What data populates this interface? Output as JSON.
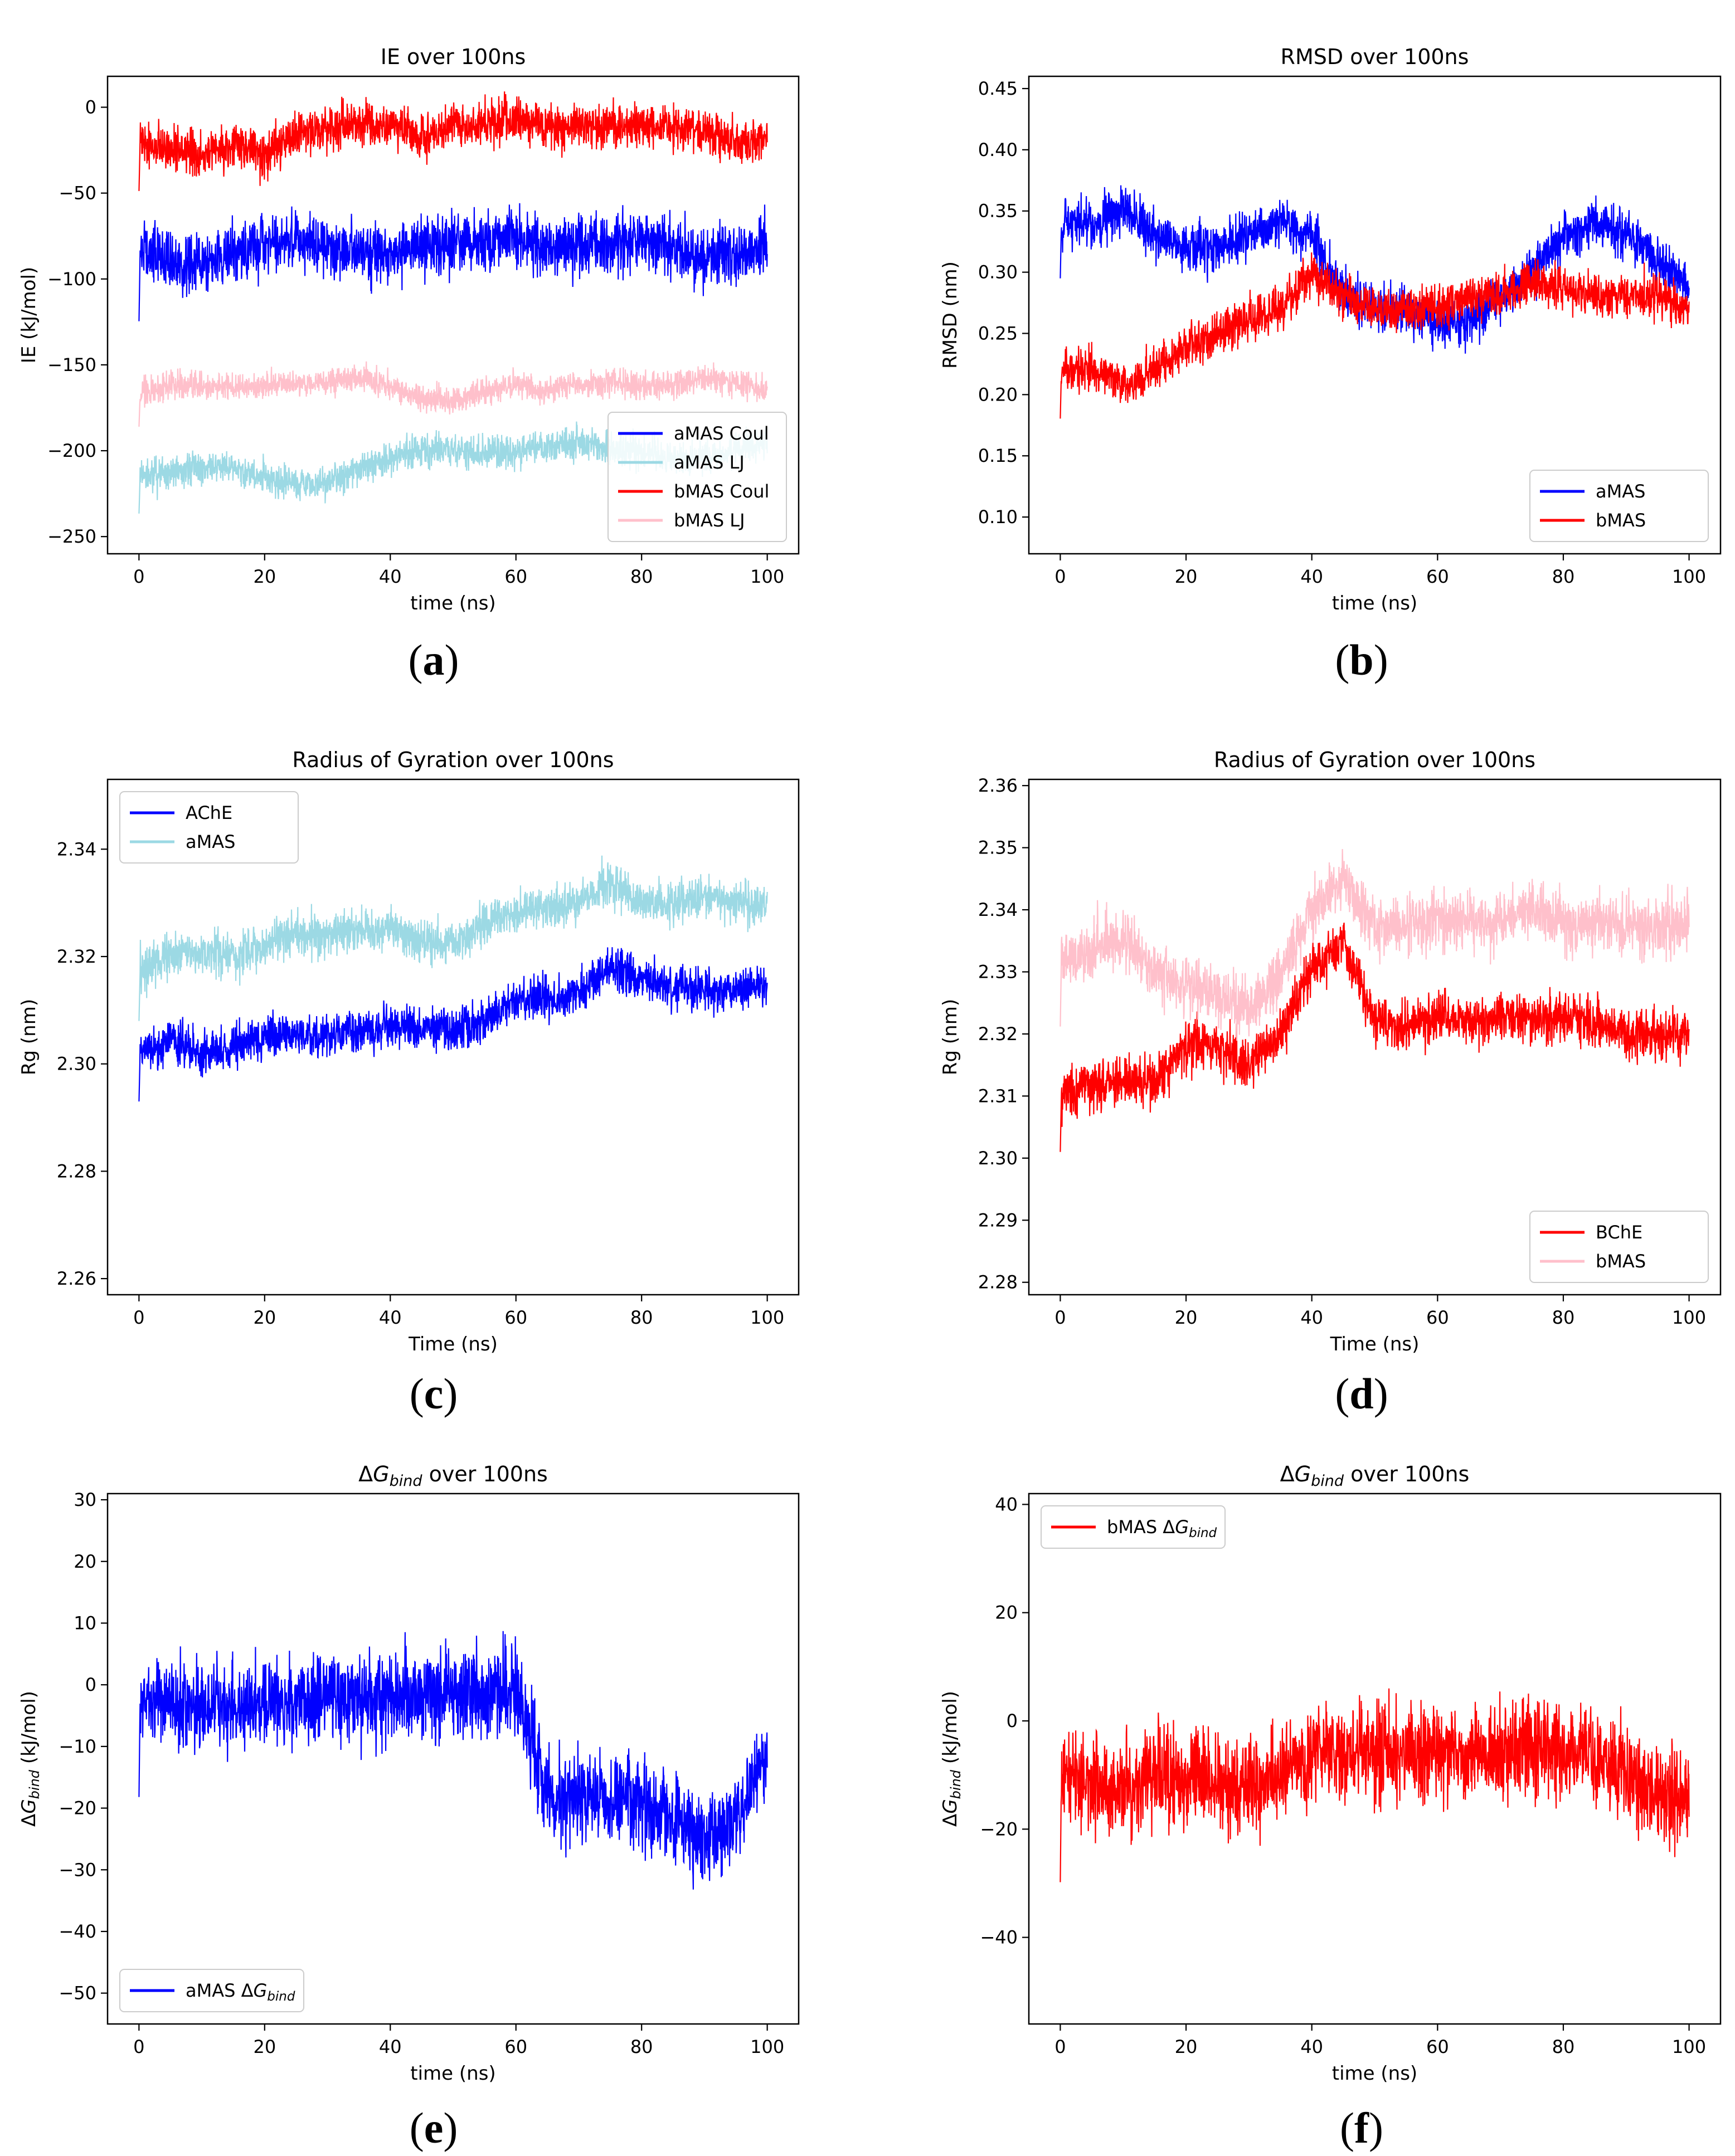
{
  "figure": {
    "panels": [
      {
        "id": "a",
        "label": "a"
      },
      {
        "id": "b",
        "label": "b"
      },
      {
        "id": "c",
        "label": "c"
      },
      {
        "id": "d",
        "label": "d"
      },
      {
        "id": "e",
        "label": "e"
      },
      {
        "id": "f",
        "label": "f"
      }
    ]
  },
  "chart_data": [
    {
      "id": "a",
      "type": "line",
      "title": "IE over 100ns",
      "xlabel": "time (ns)",
      "ylabel": "IE (kJ/mol)",
      "xlim": [
        -5,
        105
      ],
      "ylim": [
        -260,
        18
      ],
      "xticks": [
        0,
        20,
        40,
        60,
        80,
        100
      ],
      "yticks": [
        0,
        -50,
        -100,
        -150,
        -200,
        -250
      ],
      "grid": false,
      "legend": {
        "position": "lower-right"
      },
      "series": [
        {
          "name": "aMAS Coul",
          "color": "#0000ff",
          "x": [
            0,
            5,
            10,
            15,
            20,
            25,
            30,
            35,
            40,
            45,
            50,
            55,
            60,
            65,
            70,
            75,
            80,
            85,
            90,
            95,
            100
          ],
          "y": [
            -85,
            -90,
            -92,
            -85,
            -80,
            -78,
            -82,
            -85,
            -86,
            -82,
            -80,
            -78,
            -75,
            -82,
            -80,
            -80,
            -78,
            -82,
            -88,
            -85,
            -80
          ],
          "spread": 22
        },
        {
          "name": "aMAS LJ",
          "color": "#9cd9e4",
          "x": [
            0,
            5,
            10,
            15,
            20,
            25,
            30,
            35,
            40,
            45,
            50,
            55,
            60,
            65,
            70,
            75,
            80,
            85,
            90,
            95,
            100
          ],
          "y": [
            -215,
            -212,
            -210,
            -210,
            -215,
            -220,
            -218,
            -210,
            -205,
            -200,
            -200,
            -202,
            -200,
            -198,
            -195,
            -200,
            -200,
            -205,
            -205,
            -200,
            -195
          ],
          "spread": 12
        },
        {
          "name": "bMAS Coul",
          "color": "#ff0000",
          "x": [
            0,
            5,
            10,
            15,
            20,
            25,
            30,
            35,
            40,
            45,
            50,
            55,
            60,
            65,
            70,
            75,
            80,
            85,
            90,
            95,
            100
          ],
          "y": [
            -20,
            -25,
            -28,
            -22,
            -28,
            -15,
            -12,
            -10,
            -12,
            -18,
            -12,
            -10,
            -8,
            -12,
            -10,
            -10,
            -12,
            -10,
            -15,
            -20,
            -18
          ],
          "spread": 16
        },
        {
          "name": "bMAS LJ",
          "color": "#ffc0cb",
          "x": [
            0,
            5,
            10,
            15,
            20,
            25,
            30,
            35,
            40,
            45,
            50,
            55,
            60,
            65,
            70,
            75,
            80,
            85,
            90,
            95,
            100
          ],
          "y": [
            -168,
            -162,
            -162,
            -163,
            -162,
            -162,
            -160,
            -158,
            -162,
            -170,
            -172,
            -165,
            -162,
            -165,
            -162,
            -160,
            -162,
            -162,
            -158,
            -160,
            -165
          ],
          "spread": 10
        }
      ]
    },
    {
      "id": "b",
      "type": "line",
      "title": "RMSD over 100ns",
      "xlabel": "time (ns)",
      "ylabel": "RMSD (nm)",
      "xlim": [
        -5,
        105
      ],
      "ylim": [
        0.07,
        0.46
      ],
      "xticks": [
        0,
        20,
        40,
        60,
        80,
        100
      ],
      "yticks": [
        0.1,
        0.15,
        0.2,
        0.25,
        0.3,
        0.35,
        0.4,
        0.45
      ],
      "ytick_labels": [
        "0.10",
        "0.15",
        "0.20",
        "0.25",
        "0.30",
        "0.35",
        "0.40",
        "0.45"
      ],
      "grid": false,
      "legend": {
        "position": "lower-right"
      },
      "series": [
        {
          "name": "aMAS",
          "color": "#0000ff",
          "x": [
            0,
            5,
            10,
            15,
            20,
            25,
            30,
            35,
            40,
            45,
            50,
            55,
            60,
            65,
            70,
            75,
            80,
            85,
            90,
            95,
            100
          ],
          "y": [
            0.34,
            0.34,
            0.35,
            0.33,
            0.32,
            0.32,
            0.33,
            0.34,
            0.33,
            0.28,
            0.27,
            0.27,
            0.26,
            0.26,
            0.28,
            0.3,
            0.33,
            0.34,
            0.33,
            0.31,
            0.29
          ],
          "spread": 0.025
        },
        {
          "name": "bMAS",
          "color": "#ff0000",
          "x": [
            0,
            5,
            10,
            15,
            20,
            25,
            30,
            35,
            40,
            45,
            50,
            55,
            60,
            65,
            70,
            75,
            80,
            85,
            90,
            95,
            100
          ],
          "y": [
            0.22,
            0.22,
            0.21,
            0.22,
            0.24,
            0.25,
            0.26,
            0.27,
            0.3,
            0.28,
            0.27,
            0.27,
            0.27,
            0.28,
            0.28,
            0.29,
            0.29,
            0.28,
            0.28,
            0.28,
            0.27
          ],
          "spread": 0.022
        }
      ]
    },
    {
      "id": "c",
      "type": "line",
      "title": "Radius of Gyration over 100ns",
      "xlabel": "Time (ns)",
      "ylabel": "Rg (nm)",
      "xlim": [
        -5,
        105
      ],
      "ylim": [
        2.257,
        2.353
      ],
      "xticks": [
        0,
        20,
        40,
        60,
        80,
        100
      ],
      "yticks": [
        2.26,
        2.28,
        2.3,
        2.32,
        2.34
      ],
      "ytick_labels": [
        "2.26",
        "2.28",
        "2.30",
        "2.32",
        "2.34"
      ],
      "grid": false,
      "legend": {
        "position": "top-left"
      },
      "series": [
        {
          "name": "AChE",
          "color": "#0000ff",
          "x": [
            0,
            5,
            10,
            15,
            20,
            25,
            30,
            35,
            40,
            45,
            50,
            55,
            60,
            65,
            70,
            75,
            80,
            85,
            90,
            95,
            100
          ],
          "y": [
            2.302,
            2.304,
            2.302,
            2.303,
            2.305,
            2.306,
            2.305,
            2.306,
            2.307,
            2.307,
            2.306,
            2.308,
            2.312,
            2.312,
            2.313,
            2.318,
            2.316,
            2.314,
            2.314,
            2.314,
            2.315
          ],
          "spread": 0.005
        },
        {
          "name": "aMAS",
          "color": "#9cd9e4",
          "x": [
            0,
            5,
            10,
            15,
            20,
            25,
            30,
            35,
            40,
            45,
            50,
            55,
            60,
            65,
            70,
            75,
            80,
            85,
            90,
            95,
            100
          ],
          "y": [
            2.317,
            2.32,
            2.321,
            2.32,
            2.322,
            2.325,
            2.324,
            2.325,
            2.325,
            2.323,
            2.322,
            2.326,
            2.328,
            2.329,
            2.33,
            2.334,
            2.33,
            2.33,
            2.331,
            2.33,
            2.33
          ],
          "spread": 0.005
        }
      ]
    },
    {
      "id": "d",
      "type": "line",
      "title": "Radius of Gyration over 100ns",
      "xlabel": "Time (ns)",
      "ylabel": "Rg (nm)",
      "xlim": [
        -5,
        105
      ],
      "ylim": [
        2.278,
        2.361
      ],
      "xticks": [
        0,
        20,
        40,
        60,
        80,
        100
      ],
      "yticks": [
        2.28,
        2.29,
        2.3,
        2.31,
        2.32,
        2.33,
        2.34,
        2.35,
        2.36
      ],
      "ytick_labels": [
        "2.28",
        "2.29",
        "2.30",
        "2.31",
        "2.32",
        "2.33",
        "2.34",
        "2.35",
        "2.36"
      ],
      "grid": false,
      "legend": {
        "position": "lower-right"
      },
      "series": [
        {
          "name": "BChE",
          "color": "#ff0000",
          "x": [
            0,
            5,
            10,
            15,
            20,
            25,
            30,
            35,
            40,
            45,
            50,
            55,
            60,
            65,
            70,
            75,
            80,
            85,
            90,
            95,
            100
          ],
          "y": [
            2.31,
            2.312,
            2.313,
            2.312,
            2.318,
            2.318,
            2.315,
            2.32,
            2.33,
            2.335,
            2.322,
            2.321,
            2.323,
            2.322,
            2.323,
            2.322,
            2.323,
            2.322,
            2.32,
            2.32,
            2.32
          ],
          "spread": 0.005
        },
        {
          "name": "bMAS",
          "color": "#ffc0cb",
          "x": [
            0,
            5,
            10,
            15,
            20,
            25,
            30,
            35,
            40,
            45,
            50,
            55,
            60,
            65,
            70,
            75,
            80,
            85,
            90,
            95,
            100
          ],
          "y": [
            2.332,
            2.334,
            2.335,
            2.33,
            2.328,
            2.326,
            2.324,
            2.33,
            2.34,
            2.345,
            2.337,
            2.338,
            2.338,
            2.338,
            2.338,
            2.34,
            2.338,
            2.338,
            2.337,
            2.337,
            2.338
          ],
          "spread": 0.006
        }
      ]
    },
    {
      "id": "e",
      "type": "line",
      "title_text": "over 100ns",
      "xlabel": "time (ns)",
      "ylabel_text": "(kJ/mol)",
      "xlim": [
        -5,
        105
      ],
      "ylim": [
        -55,
        31
      ],
      "xticks": [
        0,
        20,
        40,
        60,
        80,
        100
      ],
      "yticks": [
        30,
        20,
        10,
        0,
        -10,
        -20,
        -30,
        -40,
        -50
      ],
      "grid": false,
      "legend": {
        "position": "lower-left"
      },
      "series": [
        {
          "name": "aMAS",
          "color": "#0000ff",
          "x": [
            0,
            5,
            10,
            15,
            20,
            25,
            30,
            35,
            40,
            45,
            50,
            55,
            60,
            65,
            70,
            75,
            80,
            85,
            90,
            95,
            100
          ],
          "y": [
            -2,
            -3,
            -4,
            -4,
            -3,
            -3,
            -2,
            -2,
            -2,
            -2,
            -1,
            -2,
            -1,
            -18,
            -18,
            -18,
            -20,
            -22,
            -25,
            -22,
            -10
          ],
          "spread": 9
        }
      ]
    },
    {
      "id": "f",
      "type": "line",
      "title_text": "over 100ns",
      "xlabel": "time (ns)",
      "ylabel_text": "(kJ/mol)",
      "xlim": [
        -5,
        105
      ],
      "ylim": [
        -56,
        42
      ],
      "xticks": [
        0,
        20,
        40,
        60,
        80,
        100
      ],
      "yticks": [
        40,
        20,
        0,
        -20,
        -40
      ],
      "grid": false,
      "legend": {
        "position": "top-left"
      },
      "series": [
        {
          "name": "bMAS",
          "color": "#ff0000",
          "x": [
            0,
            5,
            10,
            15,
            20,
            25,
            30,
            35,
            40,
            45,
            50,
            55,
            60,
            65,
            70,
            75,
            80,
            85,
            90,
            95,
            100
          ],
          "y": [
            -10,
            -12,
            -12,
            -10,
            -10,
            -12,
            -12,
            -10,
            -6,
            -6,
            -6,
            -6,
            -6,
            -6,
            -6,
            -5,
            -6,
            -6,
            -10,
            -15,
            -15
          ],
          "spread": 11
        }
      ]
    }
  ]
}
